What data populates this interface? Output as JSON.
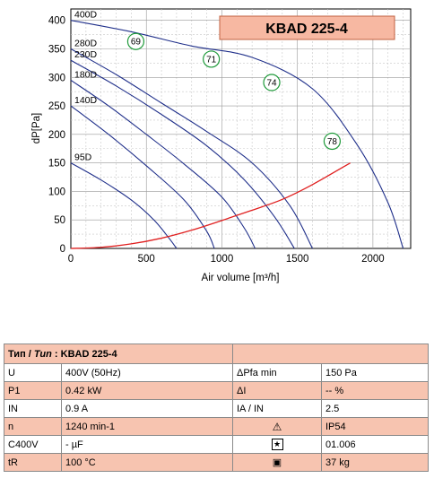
{
  "chart_data": {
    "type": "line",
    "title": "KBAD 225-4",
    "xlabel": "Air volume [m³/h]",
    "ylabel": "dP[Pa]",
    "xlim": [
      0,
      2250
    ],
    "ylim": [
      0,
      420
    ],
    "x_ticks": [
      0,
      500,
      1000,
      1500,
      2000
    ],
    "y_ticks": [
      0,
      50,
      100,
      150,
      200,
      250,
      300,
      350,
      400
    ],
    "grid": true,
    "series": [
      {
        "name": "400D",
        "x": [
          0,
          400,
          800,
          1200,
          1600,
          1900,
          2100,
          2200
        ],
        "y": [
          400,
          380,
          355,
          335,
          280,
          180,
          80,
          0
        ]
      },
      {
        "name": "280D",
        "x": [
          0,
          300,
          600,
          900,
          1200,
          1450,
          1600
        ],
        "y": [
          350,
          305,
          255,
          205,
          150,
          75,
          0
        ]
      },
      {
        "name": "230D",
        "x": [
          0,
          300,
          600,
          900,
          1150,
          1350,
          1480
        ],
        "y": [
          330,
          285,
          235,
          180,
          120,
          55,
          0
        ]
      },
      {
        "name": "180D",
        "x": [
          0,
          250,
          500,
          750,
          1000,
          1150,
          1220
        ],
        "y": [
          295,
          250,
          200,
          148,
          90,
          35,
          0
        ]
      },
      {
        "name": "140D",
        "x": [
          0,
          250,
          500,
          750,
          900,
          950
        ],
        "y": [
          250,
          200,
          145,
          85,
          30,
          0
        ]
      },
      {
        "name": "95D",
        "x": [
          0,
          200,
          400,
          550,
          650,
          700
        ],
        "y": [
          150,
          120,
          85,
          50,
          18,
          0
        ]
      },
      {
        "name": "",
        "x": [
          0,
          200,
          400,
          600,
          800,
          1000,
          1200,
          1400,
          1600,
          1850
        ],
        "y": [
          0,
          2,
          8,
          18,
          32,
          49,
          67,
          86,
          112,
          150
        ]
      }
    ],
    "efficiency_markers": [
      {
        "label": "69",
        "x": 430,
        "y": 363
      },
      {
        "label": "71",
        "x": 930,
        "y": 332
      },
      {
        "label": "74",
        "x": 1330,
        "y": 291
      },
      {
        "label": "78",
        "x": 1730,
        "y": 188
      }
    ]
  },
  "table": {
    "header_prefix": "Тип / ",
    "header_italic": "Tun",
    "header_model": ": KBAD 225-4",
    "rows": [
      {
        "p1": "U",
        "v1": "400V (50Hz)",
        "p2": "ΔPfa min",
        "v2": "150 Pa"
      },
      {
        "p1": "P1",
        "v1": "0.42 kW",
        "p2": "ΔI",
        "v2": "-- %"
      },
      {
        "p1": "IN",
        "v1": "0.9 A",
        "p2": "IA / IN",
        "v2": "2.5"
      },
      {
        "p1": "n",
        "v1": "1240 min-1",
        "p2": "",
        "v2": "IP54"
      },
      {
        "p1": "C400V",
        "v1": "- µF",
        "p2": "",
        "v2": "01.006"
      },
      {
        "p1": "tR",
        "v1": "100 °C",
        "p2": "",
        "v2": "37 kg"
      }
    ]
  },
  "colors": {
    "curve": "#1f2f8a",
    "system": "#e02020",
    "marker_border": "#1f9a3a",
    "title_box": "#f7b8a2",
    "table_accent": "#f7c4b0"
  }
}
